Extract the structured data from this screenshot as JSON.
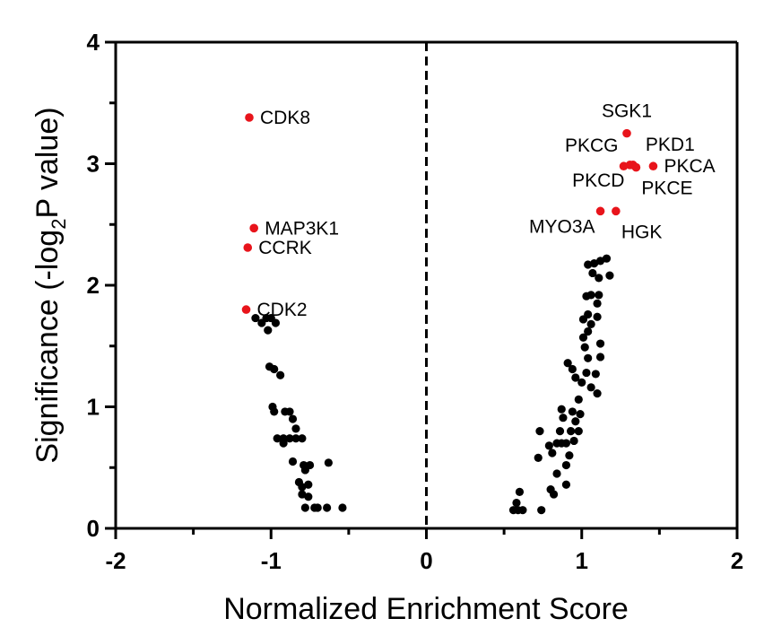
{
  "chart_data": {
    "type": "scatter",
    "title": "",
    "xlabel": "Normalized Enrichment Score",
    "ylabel_parts": [
      "Significance (-log",
      "2",
      "P value)"
    ],
    "xlim": [
      -2,
      2
    ],
    "ylim": [
      0,
      4
    ],
    "x_ticks": [
      -2,
      -1,
      0,
      1,
      2
    ],
    "y_ticks": [
      0,
      1,
      2,
      3,
      4
    ],
    "x_tick_labels": [
      "-2",
      "-1",
      "0",
      "1",
      "2"
    ],
    "y_tick_labels": [
      "0",
      "1",
      "2",
      "3",
      "4"
    ],
    "reference_line_x": 0,
    "colors": {
      "highlight": "#e8141b",
      "other": "#000000"
    },
    "highlighted": [
      {
        "label": "CDK8",
        "x": -1.14,
        "y": 3.38,
        "label_side": "right"
      },
      {
        "label": "MAP3K1",
        "x": -1.11,
        "y": 2.47,
        "label_side": "right"
      },
      {
        "label": "CCRK",
        "x": -1.15,
        "y": 2.31,
        "label_side": "right"
      },
      {
        "label": "CDK2",
        "x": -1.16,
        "y": 1.8,
        "label_side": "right"
      },
      {
        "label": "SGK1",
        "x": 1.29,
        "y": 3.25,
        "label_side": "above"
      },
      {
        "label": "PKD1",
        "x": 1.33,
        "y": 2.99,
        "label_side": "above-right"
      },
      {
        "label": "PKCG",
        "x": 1.27,
        "y": 2.98,
        "label_side": "above-left"
      },
      {
        "label": "PKCA",
        "x": 1.46,
        "y": 2.98,
        "label_side": "right"
      },
      {
        "label": "PKCD",
        "x": 1.31,
        "y": 2.99,
        "label_side": "below-left"
      },
      {
        "label": "PKCE",
        "x": 1.35,
        "y": 2.97,
        "label_side": "below-right"
      },
      {
        "label": "MYO3A",
        "x": 1.12,
        "y": 2.61,
        "label_side": "below-left"
      },
      {
        "label": "HGK",
        "x": 1.22,
        "y": 2.61,
        "label_side": "below-right"
      }
    ],
    "points": [
      [
        -1.1,
        1.73
      ],
      [
        -1.06,
        1.69
      ],
      [
        -1.03,
        1.73
      ],
      [
        -1.0,
        1.73
      ],
      [
        -0.97,
        1.69
      ],
      [
        -1.02,
        1.63
      ],
      [
        -1.01,
        1.33
      ],
      [
        -0.98,
        1.31
      ],
      [
        -0.94,
        1.26
      ],
      [
        -0.99,
        1.0
      ],
      [
        -0.98,
        0.96
      ],
      [
        -0.91,
        0.96
      ],
      [
        -0.88,
        0.96
      ],
      [
        -0.86,
        0.9
      ],
      [
        -0.84,
        0.82
      ],
      [
        -0.96,
        0.74
      ],
      [
        -0.92,
        0.74
      ],
      [
        -0.88,
        0.74
      ],
      [
        -0.84,
        0.74
      ],
      [
        -0.8,
        0.74
      ],
      [
        -0.92,
        0.7
      ],
      [
        -0.86,
        0.55
      ],
      [
        -0.79,
        0.52
      ],
      [
        -0.75,
        0.52
      ],
      [
        -0.63,
        0.54
      ],
      [
        -0.78,
        0.48
      ],
      [
        -0.82,
        0.38
      ],
      [
        -0.8,
        0.34
      ],
      [
        -0.76,
        0.36
      ],
      [
        -0.8,
        0.28
      ],
      [
        -0.76,
        0.26
      ],
      [
        -0.78,
        0.17
      ],
      [
        -0.72,
        0.17
      ],
      [
        -0.64,
        0.17
      ],
      [
        -0.54,
        0.17
      ],
      [
        -0.7,
        0.17
      ],
      [
        0.56,
        0.15
      ],
      [
        0.59,
        0.15
      ],
      [
        0.62,
        0.15
      ],
      [
        0.58,
        0.21
      ],
      [
        0.6,
        0.3
      ],
      [
        0.74,
        0.15
      ],
      [
        0.72,
        0.58
      ],
      [
        0.73,
        0.8
      ],
      [
        0.79,
        0.68
      ],
      [
        0.8,
        0.32
      ],
      [
        0.82,
        0.28
      ],
      [
        0.84,
        0.45
      ],
      [
        0.81,
        0.62
      ],
      [
        0.84,
        0.7
      ],
      [
        0.87,
        0.7
      ],
      [
        0.9,
        0.7
      ],
      [
        0.86,
        0.8
      ],
      [
        0.88,
        0.91
      ],
      [
        0.87,
        0.98
      ],
      [
        0.9,
        0.52
      ],
      [
        0.92,
        0.6
      ],
      [
        0.9,
        0.36
      ],
      [
        0.93,
        0.8
      ],
      [
        0.94,
        0.96
      ],
      [
        0.95,
        0.72
      ],
      [
        0.96,
        0.88
      ],
      [
        0.98,
        0.8
      ],
      [
        0.98,
        1.06
      ],
      [
        0.99,
        0.94
      ],
      [
        0.91,
        1.36
      ],
      [
        0.94,
        1.31
      ],
      [
        0.96,
        1.24
      ],
      [
        1.0,
        1.2
      ],
      [
        1.03,
        1.28
      ],
      [
        1.06,
        1.16
      ],
      [
        1.1,
        1.11
      ],
      [
        1.09,
        1.27
      ],
      [
        1.04,
        1.4
      ],
      [
        1.12,
        1.41
      ],
      [
        1.01,
        1.57
      ],
      [
        1.04,
        1.62
      ],
      [
        1.01,
        1.72
      ],
      [
        1.04,
        1.76
      ],
      [
        1.06,
        1.68
      ],
      [
        1.1,
        1.74
      ],
      [
        1.12,
        1.52
      ],
      [
        1.03,
        1.91
      ],
      [
        1.06,
        1.92
      ],
      [
        1.11,
        1.92
      ],
      [
        1.11,
        2.06
      ],
      [
        1.04,
        2.17
      ],
      [
        1.07,
        2.1
      ],
      [
        1.12,
        2.2
      ],
      [
        1.16,
        2.22
      ],
      [
        1.18,
        2.08
      ],
      [
        1.1,
        1.85
      ],
      [
        1.08,
        2.18
      ],
      [
        1.02,
        1.49
      ]
    ]
  }
}
